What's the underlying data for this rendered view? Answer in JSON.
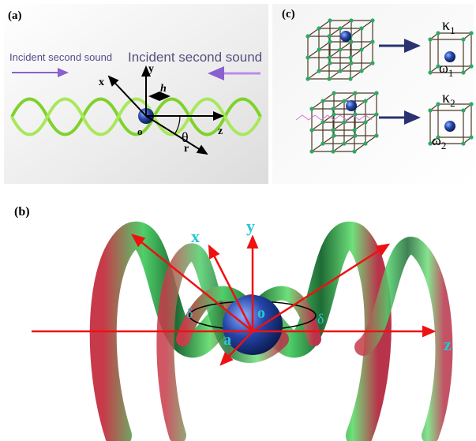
{
  "panel_a": {
    "label": "(a)",
    "incident_left": "Incident second sound",
    "incident_right": "Incident second sound",
    "axes": {
      "x": "x",
      "y": "y",
      "h": "h",
      "o": "o",
      "theta": "θ",
      "z": "z",
      "r": "r"
    }
  },
  "panel_c": {
    "label": "(c)",
    "kappa1": {
      "symbol": "κ",
      "sub": "1"
    },
    "omega1": {
      "symbol": "ω",
      "sub": "1"
    },
    "kappa2": {
      "symbol": "κ",
      "sub": "2"
    },
    "omega2": {
      "symbol": "ω",
      "sub": "2"
    }
  },
  "panel_b": {
    "label": "(b)",
    "axes": {
      "x": "x",
      "y": "y",
      "o": "o",
      "delta_left": "δ",
      "delta_right": "δ",
      "a": "a",
      "z": "z"
    }
  }
}
